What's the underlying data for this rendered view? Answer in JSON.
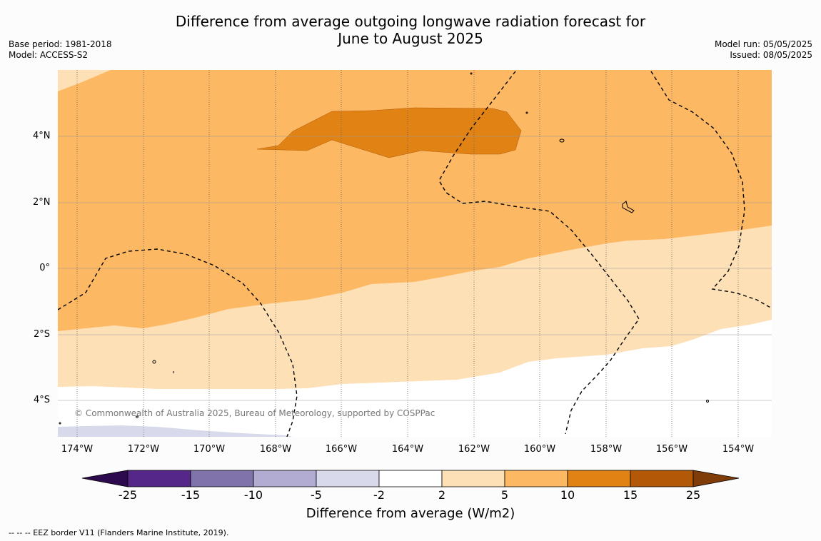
{
  "header": {
    "title_line1": "Difference from average outgoing longwave radiation forecast for",
    "title_line2": "June to August 2025",
    "base_period": "Base period: 1981-2018",
    "model": "Model: ACCESS-S2",
    "model_run": "Model run: 05/05/2025",
    "issued": "Issued: 08/05/2025"
  },
  "map": {
    "lat_labels": [
      "4°N",
      "2°N",
      "0°",
      "2°S",
      "4°S"
    ],
    "lon_labels": [
      "174°W",
      "172°W",
      "170°W",
      "168°W",
      "166°W",
      "164°W",
      "162°W",
      "160°W",
      "158°W",
      "156°W",
      "154°W"
    ],
    "copyright": "© Commonwealth of Australia 2025, Bureau of Meteorology, supported by COSPPac",
    "eez_legend": "--  --  -- EEZ border V11 (Flanders Marine Institute, 2019)."
  },
  "colorbar": {
    "title": "Difference from average (W/m2)",
    "ticks": [
      "-25",
      "-15",
      "-10",
      "-5",
      "-2",
      "2",
      "5",
      "10",
      "15",
      "25"
    ],
    "colors": [
      "#2d0a4e",
      "#542788",
      "#8073ac",
      "#b2abd2",
      "#d8daeb",
      "#ffffff",
      "#fee0b6",
      "#fdb863",
      "#e08214",
      "#b35806",
      "#7f3b08"
    ]
  }
}
